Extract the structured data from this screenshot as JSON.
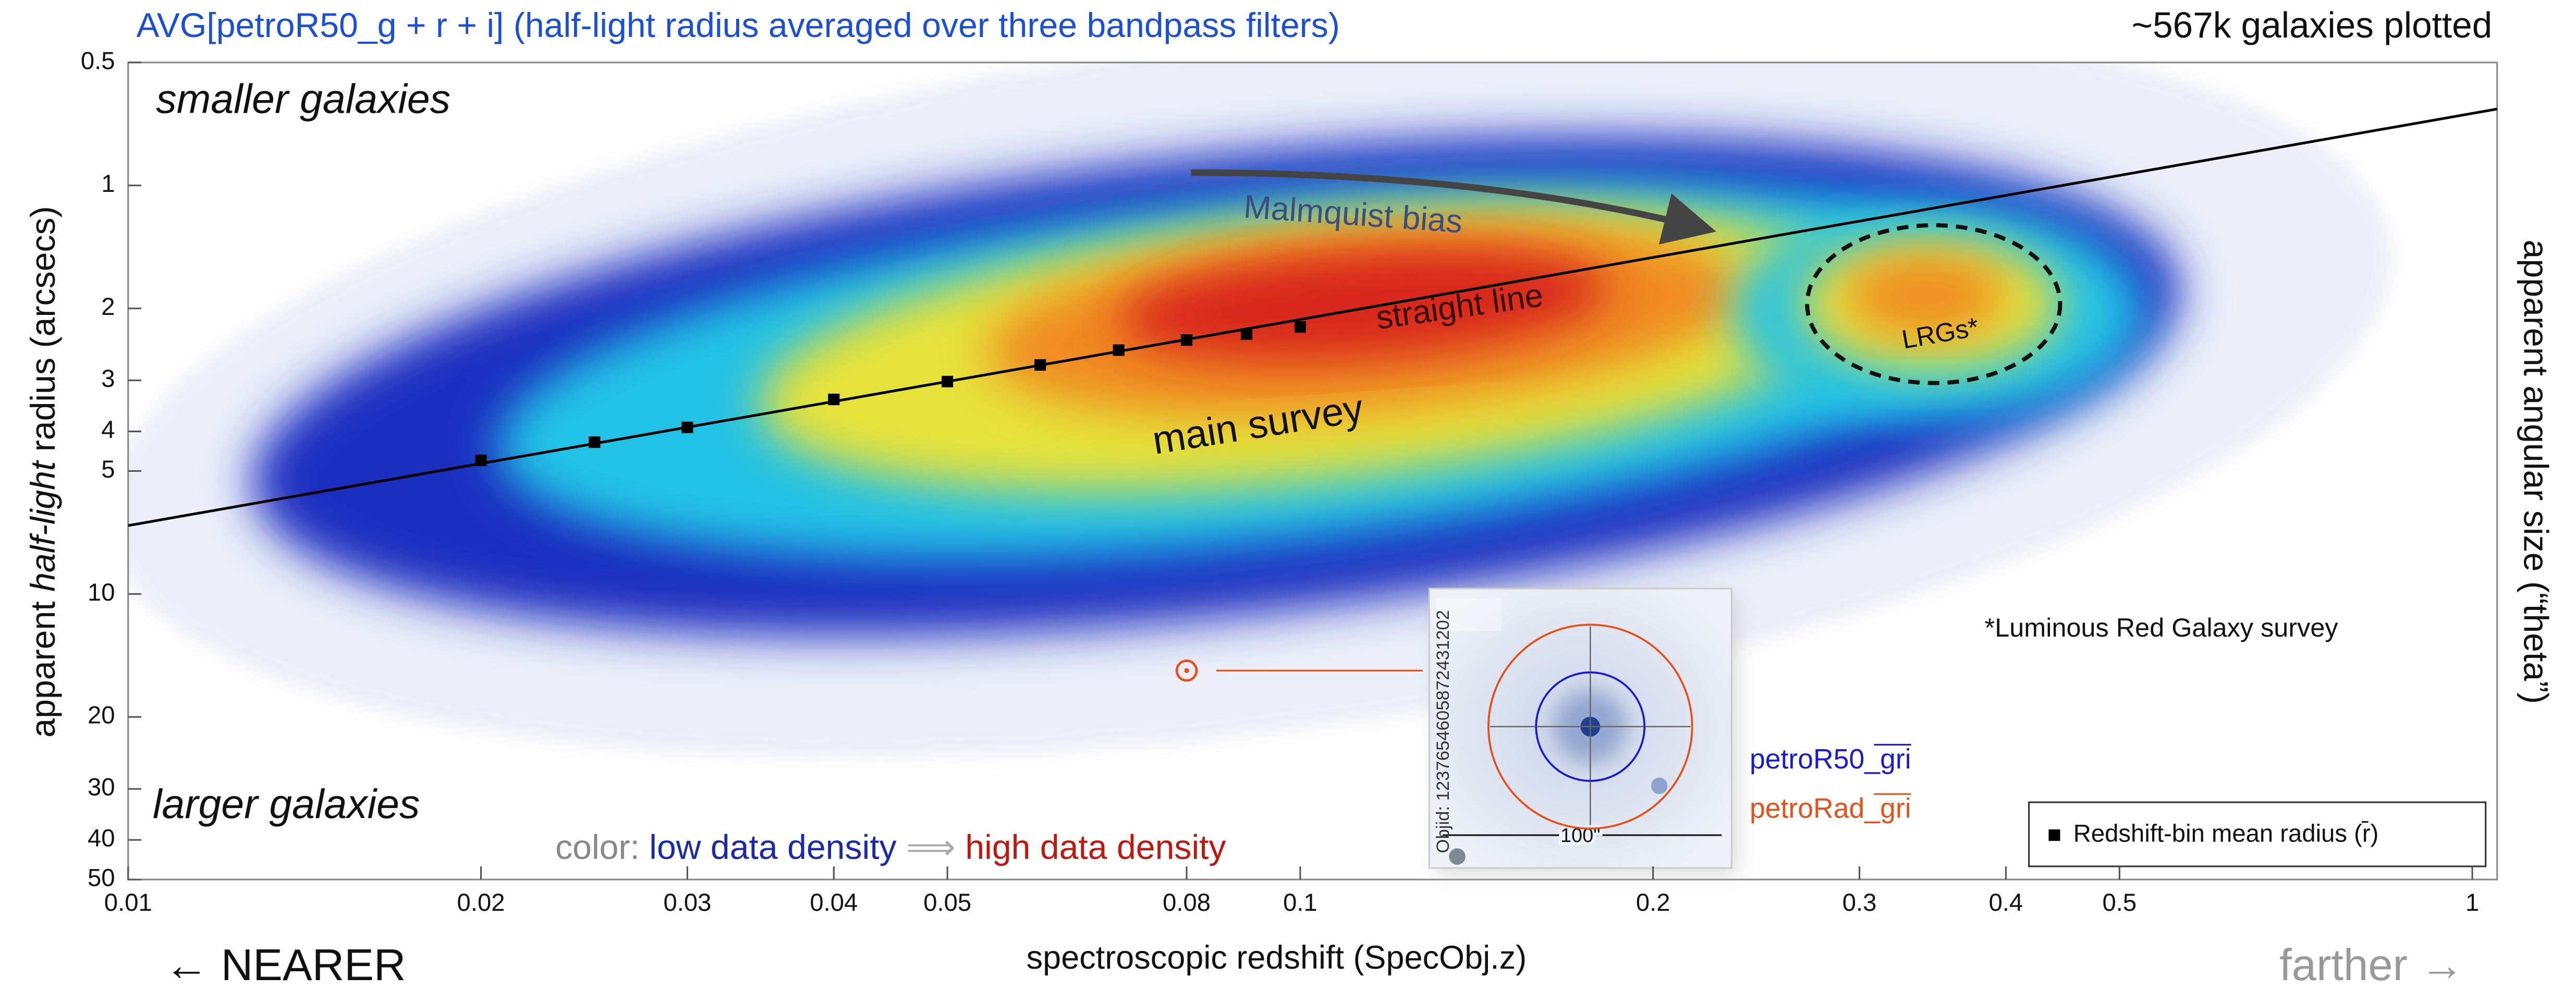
{
  "chart_data": {
    "type": "scatter",
    "title": "AVG[petroR50_g + r + i] (half-light radius averaged over three bandpass filters)",
    "note": "~567k galaxies plotted",
    "x_label": "spectroscopic redshift (SpecObj.z)",
    "x_left_label": "← NEARER",
    "x_right_label": "farther →",
    "y_label_parts": [
      "apparent ",
      "half-light",
      " radius (arcsecs)"
    ],
    "y2_label": "apparent angular size (“theta”)",
    "annotations": {
      "top": "smaller galaxies",
      "bottom": "larger galaxies",
      "bias": "Malmquist bias",
      "line": "straight line",
      "survey": "main survey",
      "lrg": "LRGs*",
      "lrg_footnote": "*Luminous Red Galaxy survey",
      "color_parts": [
        "color: ",
        "low data density",
        " ⟹ ",
        "high data density"
      ]
    },
    "xscale": "log",
    "yscale": "log",
    "y_inverted": true,
    "xlim": [
      0.01,
      1.05
    ],
    "ylim": [
      0.5,
      50
    ],
    "xticks": [
      0.01,
      0.02,
      0.03,
      0.04,
      0.05,
      0.08,
      0.1,
      0.2,
      0.3,
      0.4,
      0.5,
      1
    ],
    "yticks": [
      0.5,
      1,
      2,
      3,
      4,
      5,
      10,
      20,
      30,
      40,
      50
    ],
    "series": [
      {
        "name": "Redshift-bin mean radius (r̄)",
        "color": "#000000",
        "x": [
          0.02,
          0.025,
          0.03,
          0.04,
          0.05,
          0.06,
          0.07,
          0.08,
          0.09,
          0.1
        ],
        "values": [
          4.71,
          4.25,
          3.91,
          3.34,
          3.02,
          2.75,
          2.53,
          2.39,
          2.31,
          2.22
        ]
      }
    ],
    "fit_line": {
      "color": "#000000",
      "x": [
        0.01,
        1.05
      ],
      "values": [
        6.8,
        0.65
      ]
    },
    "highlighted_galaxy": {
      "x": 0.08,
      "y": 15.4,
      "color": "#e8501a",
      "objid": "Objid: 1237654605872431202",
      "scale_label": "100\"",
      "radius_labels": [
        {
          "text": "petroR50_gri",
          "color": "#1a1ad0"
        },
        {
          "text": "petroRad_gri",
          "color": "#e8501a"
        }
      ]
    },
    "legend": "lower right"
  }
}
